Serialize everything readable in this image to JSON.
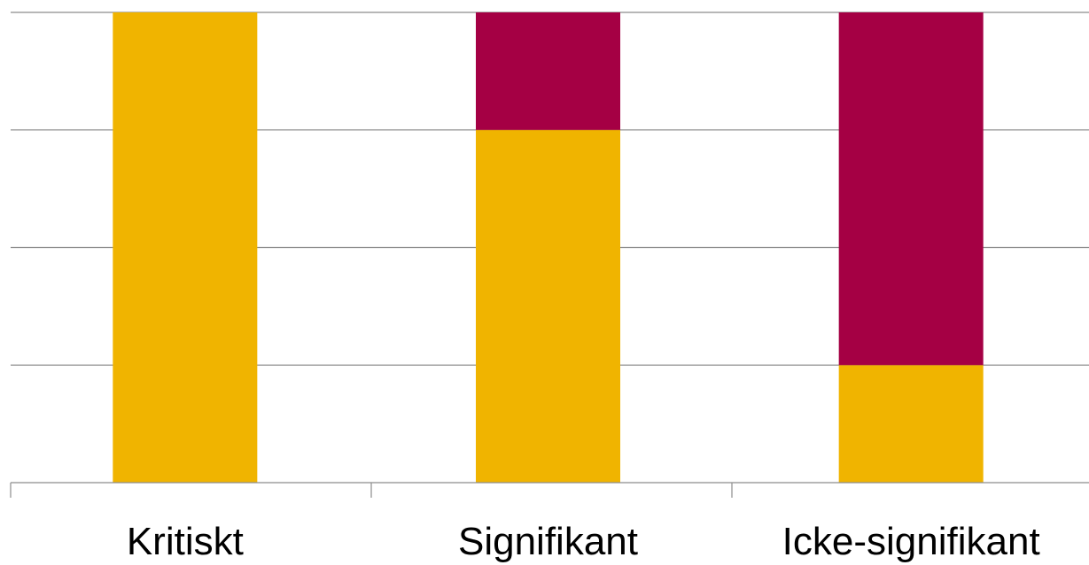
{
  "chart_data": {
    "type": "bar",
    "stacked": true,
    "categories": [
      "Kritiskt",
      "Signifikant",
      "Icke-signifikant"
    ],
    "series": [
      {
        "values": [
          100,
          75,
          25
        ],
        "color": "#f0b400"
      },
      {
        "values": [
          0,
          25,
          75
        ],
        "color": "#a50044"
      }
    ],
    "ylim": [
      0,
      100
    ],
    "grid": true,
    "title": "",
    "xlabel": "",
    "ylabel": ""
  }
}
